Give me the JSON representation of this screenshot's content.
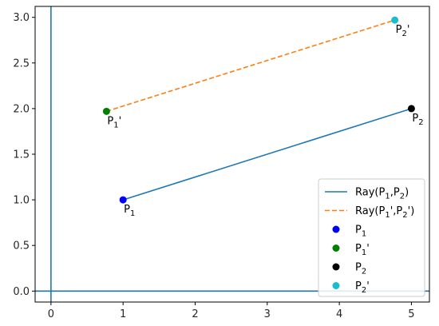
{
  "chart_data": {
    "type": "line",
    "title": "",
    "xlabel": "",
    "ylabel": "",
    "xlim": [
      -0.22,
      5.25
    ],
    "ylim": [
      -0.12,
      3.12
    ],
    "xticks": [
      0,
      1,
      2,
      3,
      4,
      5
    ],
    "yticks": [
      0.0,
      0.5,
      1.0,
      1.5,
      2.0,
      2.5,
      3.0
    ],
    "xtick_labels": [
      "0",
      "1",
      "2",
      "3",
      "4",
      "5"
    ],
    "ytick_labels": [
      "0.0",
      "0.5",
      "1.0",
      "1.5",
      "2.0",
      "2.5",
      "3.0"
    ],
    "axis_lines": {
      "x": 0,
      "y": 0,
      "color": "#1f77b4"
    },
    "grid": false,
    "legend_position": "lower-right",
    "series": [
      {
        "name": "Ray(P1,P2)",
        "name_base": "Ray(P",
        "sub1": "1",
        "mid": ",P",
        "sub2": "2",
        "tail": ")",
        "prime": false,
        "kind": "line",
        "style": "solid",
        "color": "#1f77b4",
        "x": [
          1,
          5
        ],
        "y": [
          1,
          2
        ]
      },
      {
        "name": "Ray(P1',P2')",
        "name_base": "Ray(P",
        "sub1": "1",
        "mid": "',P",
        "sub2": "2",
        "tail": "')",
        "prime": true,
        "kind": "line",
        "style": "dashed",
        "color": "#ff7f0e",
        "x": [
          0.77,
          4.77
        ],
        "y": [
          1.97,
          2.97
        ]
      }
    ],
    "points": [
      {
        "label": "P1",
        "base": "P",
        "sub": "1",
        "suffix": "",
        "x": 1,
        "y": 1,
        "color": "#0000ff"
      },
      {
        "label": "P1'",
        "base": "P",
        "sub": "1",
        "suffix": "'",
        "x": 0.77,
        "y": 1.97,
        "color": "#008000"
      },
      {
        "label": "P2",
        "base": "P",
        "sub": "2",
        "suffix": "",
        "x": 5,
        "y": 2,
        "color": "#000000"
      },
      {
        "label": "P2'",
        "base": "P",
        "sub": "2",
        "suffix": "'",
        "x": 4.77,
        "y": 2.97,
        "color": "#17becf"
      }
    ]
  }
}
